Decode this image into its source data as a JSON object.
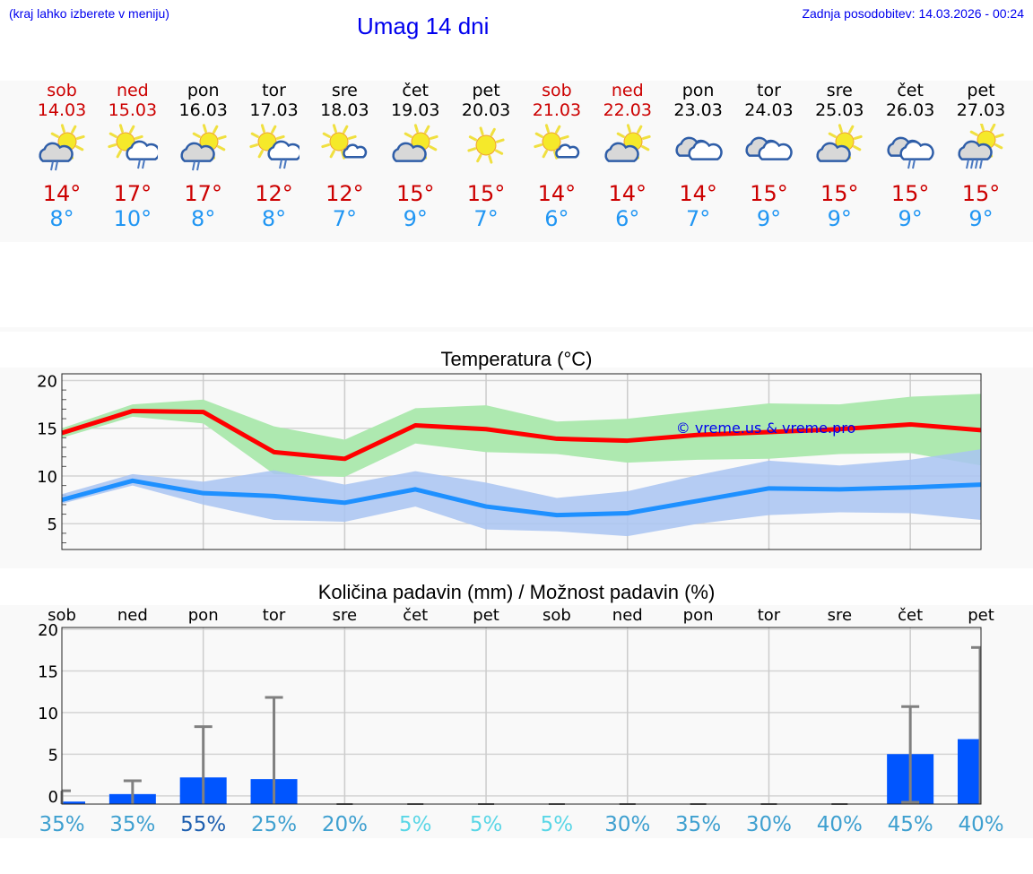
{
  "header": {
    "hint": "(kraj lahko izberete v meniju)",
    "title": "Umag 14 dni",
    "updated": "Zadnja posodobitev: 14.03.2026 - 00:24"
  },
  "days": [
    {
      "name": "sob",
      "date": "14.03",
      "weekend": true,
      "icon": "sun-cloud-rain-icon",
      "max": "14°",
      "min": "8°"
    },
    {
      "name": "ned",
      "date": "15.03",
      "weekend": true,
      "icon": "sun-lightcloud-rain-icon",
      "max": "17°",
      "min": "10°"
    },
    {
      "name": "pon",
      "date": "16.03",
      "weekend": false,
      "icon": "sun-cloud-rain-icon",
      "max": "17°",
      "min": "8°"
    },
    {
      "name": "tor",
      "date": "17.03",
      "weekend": false,
      "icon": "sun-lightcloud-rain-icon",
      "max": "12°",
      "min": "8°"
    },
    {
      "name": "sre",
      "date": "18.03",
      "weekend": false,
      "icon": "sun-small-cloud-icon",
      "max": "12°",
      "min": "7°"
    },
    {
      "name": "čet",
      "date": "19.03",
      "weekend": false,
      "icon": "sun-cloud-icon",
      "max": "15°",
      "min": "9°"
    },
    {
      "name": "pet",
      "date": "20.03",
      "weekend": false,
      "icon": "sun-icon",
      "max": "15°",
      "min": "7°"
    },
    {
      "name": "sob",
      "date": "21.03",
      "weekend": true,
      "icon": "sun-small-cloud-icon",
      "max": "14°",
      "min": "6°"
    },
    {
      "name": "ned",
      "date": "22.03",
      "weekend": true,
      "icon": "sun-cloud-icon",
      "max": "14°",
      "min": "6°"
    },
    {
      "name": "pon",
      "date": "23.03",
      "weekend": false,
      "icon": "overcast-icon",
      "max": "14°",
      "min": "7°"
    },
    {
      "name": "tor",
      "date": "24.03",
      "weekend": false,
      "icon": "overcast-icon",
      "max": "15°",
      "min": "9°"
    },
    {
      "name": "sre",
      "date": "25.03",
      "weekend": false,
      "icon": "sun-cloud-icon",
      "max": "15°",
      "min": "9°"
    },
    {
      "name": "čet",
      "date": "26.03",
      "weekend": false,
      "icon": "overcast-rain-icon",
      "max": "15°",
      "min": "9°"
    },
    {
      "name": "pet",
      "date": "27.03",
      "weekend": false,
      "icon": "sun-cloud-heavy-rain-icon",
      "max": "15°",
      "min": "9°"
    }
  ],
  "colors": {
    "max_line": "#ff0000",
    "max_band": "#aee9b0",
    "min_line": "#1e90ff",
    "min_band": "#a9c4f2",
    "bar": "#0055ff",
    "errorbar": "#808080",
    "weekend": "#cc0000",
    "max_text": "#cc0000",
    "min_text": "#2196f3",
    "watermark": "#0000ee"
  },
  "temp_chart": {
    "title": "Temperatura (°C)",
    "watermark": "© vreme.us & vreme.pro"
  },
  "precip_chart": {
    "title": "Količina padavin (mm) / Možnost padavin (%)"
  },
  "chart_data": [
    {
      "type": "line",
      "title": "Temperatura (°C)",
      "xlabel": "",
      "ylabel": "",
      "categories": [
        "14.03",
        "15.03",
        "16.03",
        "17.03",
        "18.03",
        "19.03",
        "20.03",
        "21.03",
        "22.03",
        "23.03",
        "24.03",
        "25.03",
        "26.03",
        "27.03"
      ],
      "ylim": [
        2.3,
        20.7
      ],
      "yticks": [
        5,
        10,
        15,
        20
      ],
      "grid": true,
      "legend": "none",
      "series": [
        {
          "name": "max",
          "values": [
            14.5,
            16.8,
            16.7,
            12.5,
            11.8,
            15.3,
            14.9,
            13.9,
            13.7,
            14.3,
            14.6,
            14.9,
            15.4,
            14.8
          ],
          "band_high": [
            15.0,
            17.5,
            18.0,
            15.2,
            13.8,
            17.1,
            17.4,
            15.7,
            16.0,
            16.8,
            17.6,
            17.5,
            18.3,
            18.6
          ],
          "band_low": [
            14.0,
            16.2,
            15.5,
            10.2,
            9.9,
            13.4,
            12.5,
            12.3,
            11.4,
            11.7,
            11.8,
            12.3,
            12.4,
            11.1
          ]
        },
        {
          "name": "min",
          "values": [
            7.5,
            9.5,
            8.2,
            7.9,
            7.2,
            8.6,
            6.8,
            5.9,
            6.1,
            7.4,
            8.7,
            8.6,
            8.8,
            9.1
          ],
          "band_high": [
            8.1,
            10.2,
            9.4,
            10.6,
            9.1,
            10.5,
            9.3,
            7.7,
            8.4,
            10.1,
            11.6,
            11.1,
            11.7,
            12.8
          ],
          "band_low": [
            7.1,
            9.0,
            7.0,
            5.4,
            5.2,
            6.8,
            4.4,
            4.2,
            3.7,
            5.0,
            5.9,
            6.2,
            6.1,
            5.4
          ]
        }
      ]
    },
    {
      "type": "bar",
      "title": "Količina padavin (mm) / Možnost padavin (%)",
      "xlabel": "",
      "ylabel": "",
      "categories": [
        "sob",
        "ned",
        "pon",
        "tor",
        "sre",
        "čet",
        "pet",
        "sob",
        "ned",
        "pon",
        "tor",
        "sre",
        "čet",
        "pet"
      ],
      "ylim": [
        -1.2,
        20
      ],
      "yticks": [
        0,
        5,
        10,
        15,
        20
      ],
      "grid": true,
      "values": [
        0.3,
        1.2,
        3.2,
        3.0,
        0,
        0,
        0,
        0,
        0,
        0,
        0,
        0,
        6.0,
        7.8
      ],
      "error_max": [
        1.6,
        2.8,
        9.3,
        12.8,
        0,
        0,
        0,
        0,
        0,
        0,
        0,
        0,
        11.7,
        18.8
      ],
      "probability_pct": [
        35,
        35,
        55,
        25,
        20,
        5,
        5,
        5,
        30,
        35,
        30,
        40,
        45,
        40
      ]
    }
  ],
  "precip_labels": {
    "probabilities": [
      "35%",
      "35%",
      "55%",
      "25%",
      "20%",
      "5%",
      "5%",
      "5%",
      "30%",
      "35%",
      "30%",
      "40%",
      "45%",
      "40%"
    ],
    "prob_colors": [
      "#3fa0d0",
      "#3fa0d0",
      "#1f60b0",
      "#3fa0d0",
      "#3fa0d0",
      "#5ad6e6",
      "#5ad6e6",
      "#5ad6e6",
      "#3fa0d0",
      "#3fa0d0",
      "#3fa0d0",
      "#3fa0d0",
      "#3fa0d0",
      "#3fa0d0"
    ]
  }
}
